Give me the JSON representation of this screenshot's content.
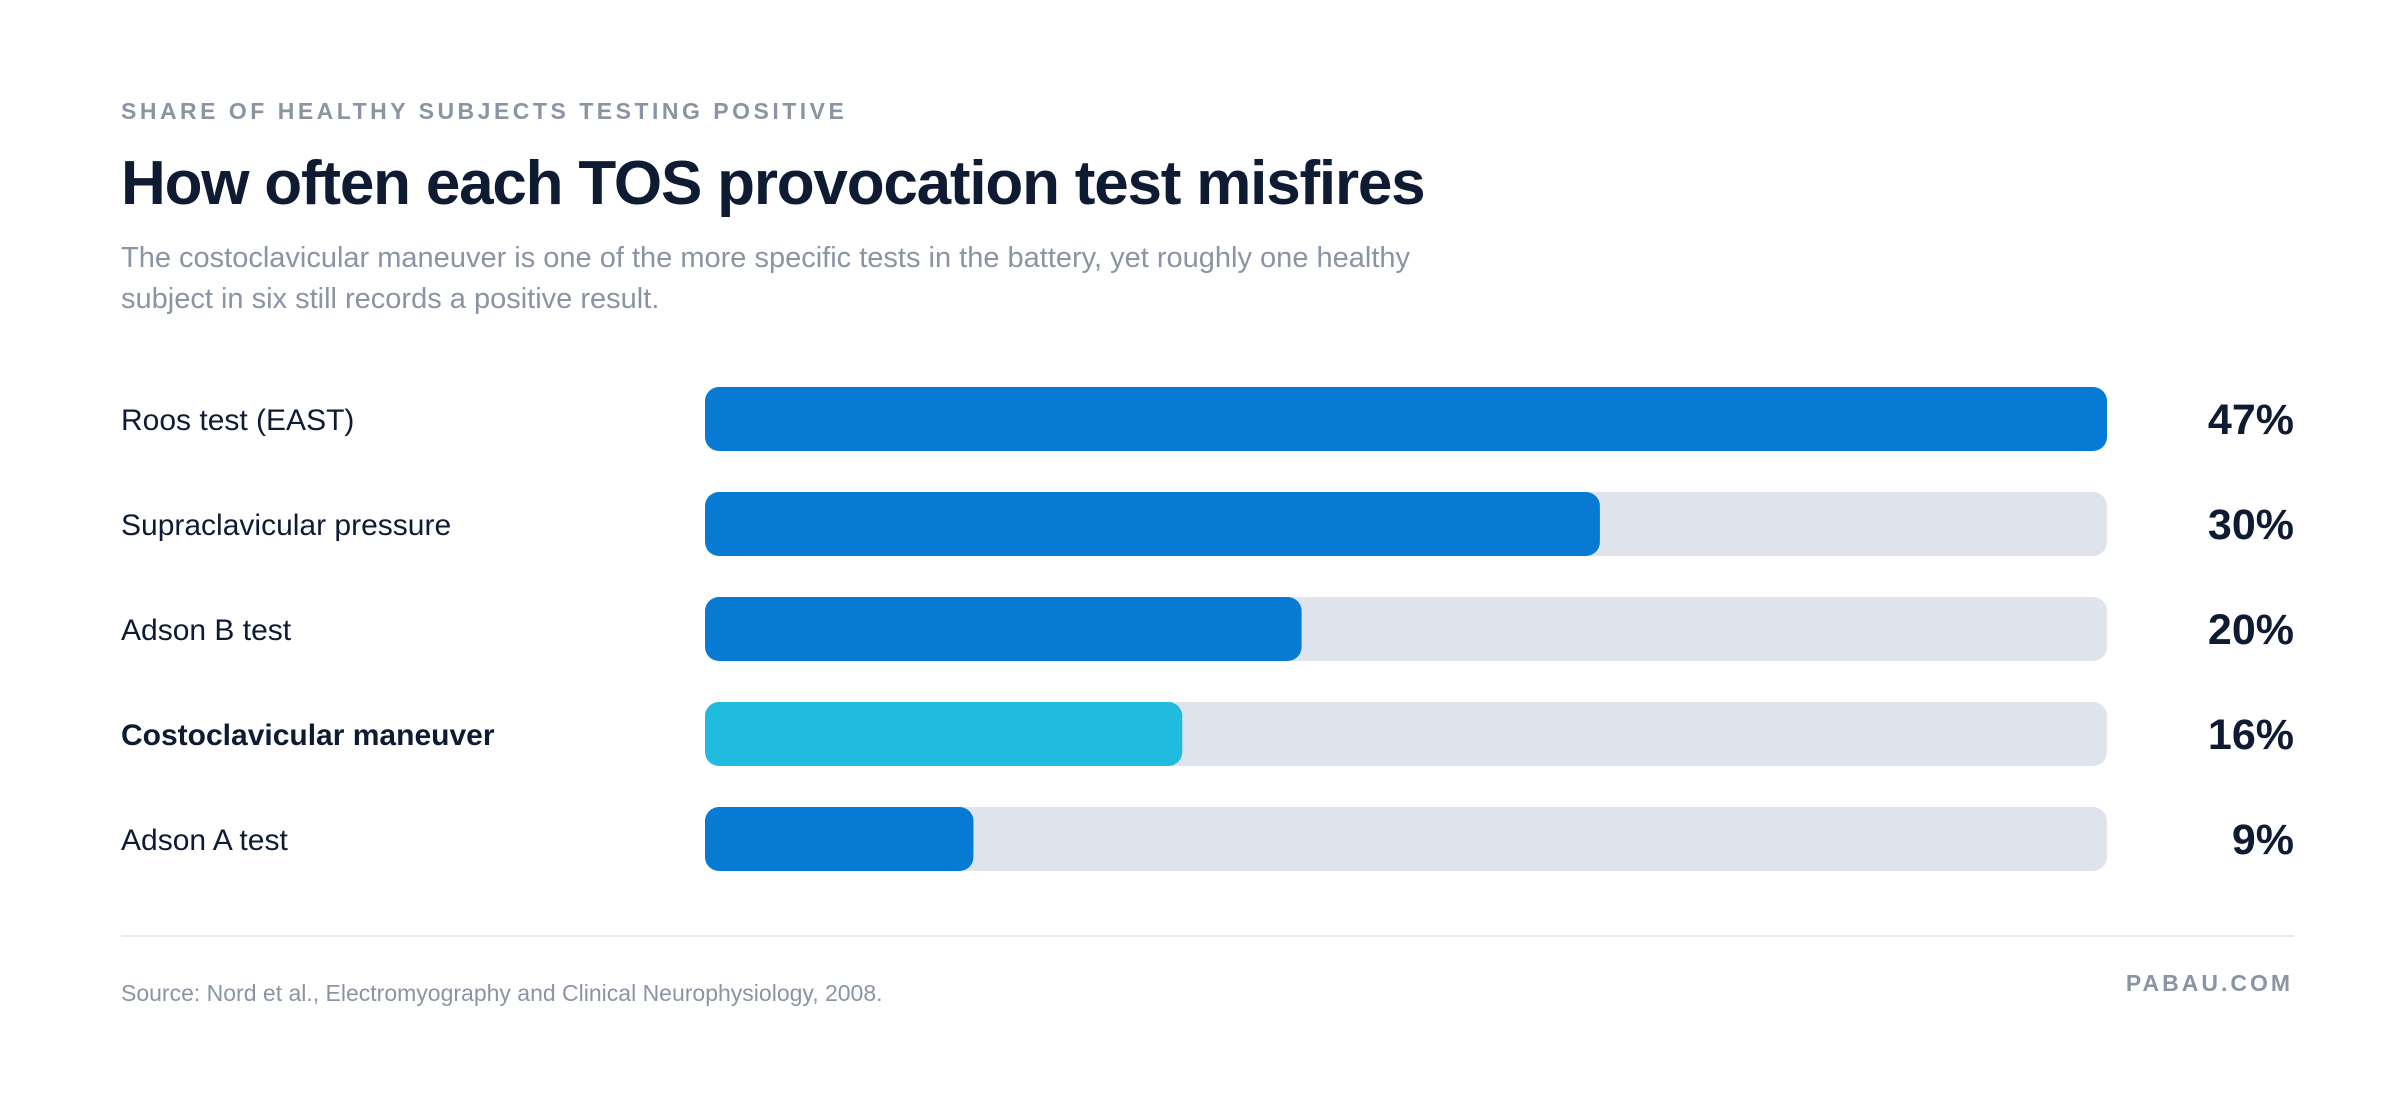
{
  "header": {
    "eyebrow": "SHARE OF HEALTHY SUBJECTS TESTING POSITIVE",
    "title": "How often each TOS provocation test misfires",
    "subtitle": "The costoclavicular maneuver is one of the more specific tests in the battery, yet roughly one healthy subject in six still records a positive result."
  },
  "footer": {
    "source": "Source: Nord et al., Electromyography and Clinical Neurophysiology, 2008.",
    "brand": "PABAU.COM"
  },
  "chart_data": {
    "type": "bar",
    "orientation": "horizontal",
    "categories": [
      "Roos test (EAST)",
      "Supraclavicular pressure",
      "Adson B test",
      "Costoclavicular maneuver",
      "Adson A test"
    ],
    "values": [
      47,
      30,
      20,
      16,
      9
    ],
    "value_labels": [
      "47%",
      "30%",
      "20%",
      "16%",
      "9%"
    ],
    "highlight": "Costoclavicular maneuver",
    "xlim": [
      0,
      47
    ],
    "grid": false,
    "colors": {
      "bar": "#077bd3",
      "highlight": "#22bbe0",
      "track": "#dfe3ec",
      "label": "#0f1b33"
    }
  }
}
